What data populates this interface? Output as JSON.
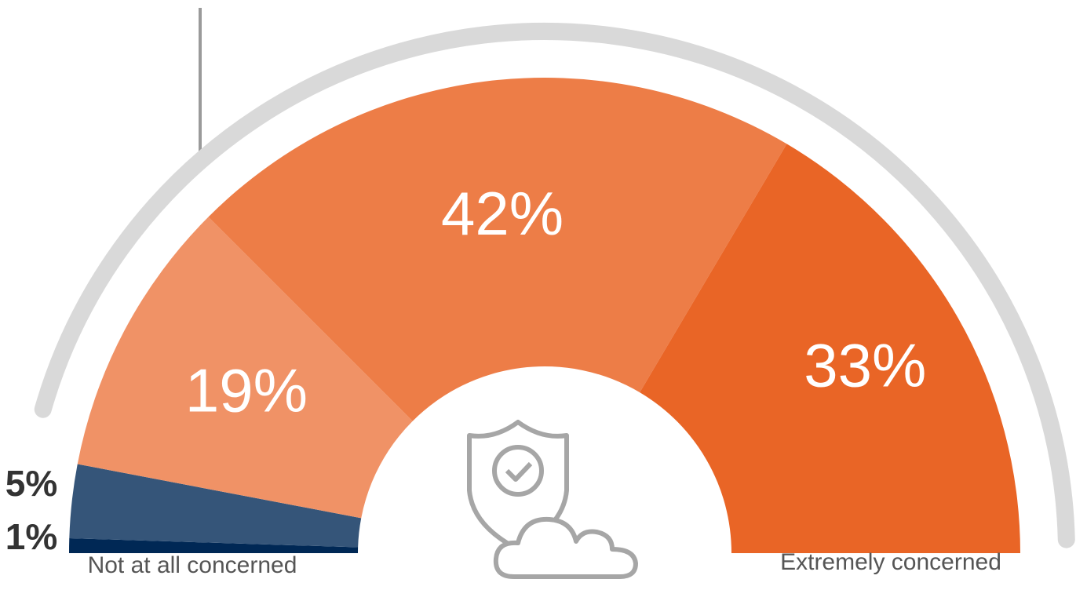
{
  "chart_data": {
    "type": "pie",
    "values": [
      1,
      5,
      19,
      42,
      33
    ],
    "value_labels": [
      "1%",
      "5%",
      "19%",
      "42%",
      "33%"
    ],
    "colors": [
      "#002855",
      "#355579",
      "#f09266",
      "#ed7d47",
      "#e96526"
    ],
    "axis_labels": [
      "Not at all concerned",
      "Extremely concerned"
    ]
  }
}
